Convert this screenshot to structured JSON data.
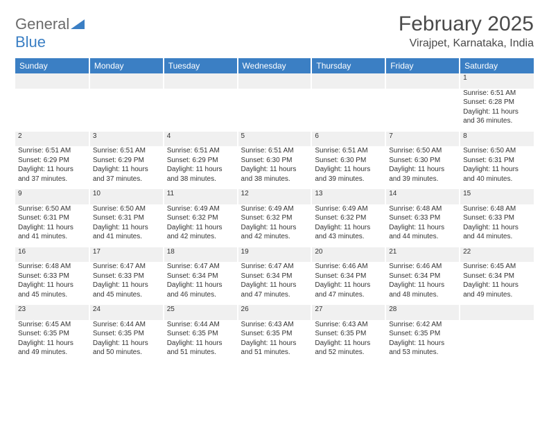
{
  "logo": {
    "text1": "General",
    "text2": "Blue"
  },
  "header": {
    "title": "February 2025",
    "location": "Virajpet, Karnataka, India"
  },
  "colors": {
    "header_bg": "#3b7fc4",
    "header_text": "#ffffff",
    "daynum_bg": "#f0f0f0",
    "text": "#333333",
    "logo_gray": "#6b6b6b",
    "logo_blue": "#3b7fc4"
  },
  "weekdays": [
    "Sunday",
    "Monday",
    "Tuesday",
    "Wednesday",
    "Thursday",
    "Friday",
    "Saturday"
  ],
  "weeks": [
    {
      "nums": [
        "",
        "",
        "",
        "",
        "",
        "",
        "1"
      ],
      "cells": [
        null,
        null,
        null,
        null,
        null,
        null,
        {
          "sunrise": "Sunrise: 6:51 AM",
          "sunset": "Sunset: 6:28 PM",
          "day1": "Daylight: 11 hours",
          "day2": "and 36 minutes."
        }
      ]
    },
    {
      "nums": [
        "2",
        "3",
        "4",
        "5",
        "6",
        "7",
        "8"
      ],
      "cells": [
        {
          "sunrise": "Sunrise: 6:51 AM",
          "sunset": "Sunset: 6:29 PM",
          "day1": "Daylight: 11 hours",
          "day2": "and 37 minutes."
        },
        {
          "sunrise": "Sunrise: 6:51 AM",
          "sunset": "Sunset: 6:29 PM",
          "day1": "Daylight: 11 hours",
          "day2": "and 37 minutes."
        },
        {
          "sunrise": "Sunrise: 6:51 AM",
          "sunset": "Sunset: 6:29 PM",
          "day1": "Daylight: 11 hours",
          "day2": "and 38 minutes."
        },
        {
          "sunrise": "Sunrise: 6:51 AM",
          "sunset": "Sunset: 6:30 PM",
          "day1": "Daylight: 11 hours",
          "day2": "and 38 minutes."
        },
        {
          "sunrise": "Sunrise: 6:51 AM",
          "sunset": "Sunset: 6:30 PM",
          "day1": "Daylight: 11 hours",
          "day2": "and 39 minutes."
        },
        {
          "sunrise": "Sunrise: 6:50 AM",
          "sunset": "Sunset: 6:30 PM",
          "day1": "Daylight: 11 hours",
          "day2": "and 39 minutes."
        },
        {
          "sunrise": "Sunrise: 6:50 AM",
          "sunset": "Sunset: 6:31 PM",
          "day1": "Daylight: 11 hours",
          "day2": "and 40 minutes."
        }
      ]
    },
    {
      "nums": [
        "9",
        "10",
        "11",
        "12",
        "13",
        "14",
        "15"
      ],
      "cells": [
        {
          "sunrise": "Sunrise: 6:50 AM",
          "sunset": "Sunset: 6:31 PM",
          "day1": "Daylight: 11 hours",
          "day2": "and 41 minutes."
        },
        {
          "sunrise": "Sunrise: 6:50 AM",
          "sunset": "Sunset: 6:31 PM",
          "day1": "Daylight: 11 hours",
          "day2": "and 41 minutes."
        },
        {
          "sunrise": "Sunrise: 6:49 AM",
          "sunset": "Sunset: 6:32 PM",
          "day1": "Daylight: 11 hours",
          "day2": "and 42 minutes."
        },
        {
          "sunrise": "Sunrise: 6:49 AM",
          "sunset": "Sunset: 6:32 PM",
          "day1": "Daylight: 11 hours",
          "day2": "and 42 minutes."
        },
        {
          "sunrise": "Sunrise: 6:49 AM",
          "sunset": "Sunset: 6:32 PM",
          "day1": "Daylight: 11 hours",
          "day2": "and 43 minutes."
        },
        {
          "sunrise": "Sunrise: 6:48 AM",
          "sunset": "Sunset: 6:33 PM",
          "day1": "Daylight: 11 hours",
          "day2": "and 44 minutes."
        },
        {
          "sunrise": "Sunrise: 6:48 AM",
          "sunset": "Sunset: 6:33 PM",
          "day1": "Daylight: 11 hours",
          "day2": "and 44 minutes."
        }
      ]
    },
    {
      "nums": [
        "16",
        "17",
        "18",
        "19",
        "20",
        "21",
        "22"
      ],
      "cells": [
        {
          "sunrise": "Sunrise: 6:48 AM",
          "sunset": "Sunset: 6:33 PM",
          "day1": "Daylight: 11 hours",
          "day2": "and 45 minutes."
        },
        {
          "sunrise": "Sunrise: 6:47 AM",
          "sunset": "Sunset: 6:33 PM",
          "day1": "Daylight: 11 hours",
          "day2": "and 45 minutes."
        },
        {
          "sunrise": "Sunrise: 6:47 AM",
          "sunset": "Sunset: 6:34 PM",
          "day1": "Daylight: 11 hours",
          "day2": "and 46 minutes."
        },
        {
          "sunrise": "Sunrise: 6:47 AM",
          "sunset": "Sunset: 6:34 PM",
          "day1": "Daylight: 11 hours",
          "day2": "and 47 minutes."
        },
        {
          "sunrise": "Sunrise: 6:46 AM",
          "sunset": "Sunset: 6:34 PM",
          "day1": "Daylight: 11 hours",
          "day2": "and 47 minutes."
        },
        {
          "sunrise": "Sunrise: 6:46 AM",
          "sunset": "Sunset: 6:34 PM",
          "day1": "Daylight: 11 hours",
          "day2": "and 48 minutes."
        },
        {
          "sunrise": "Sunrise: 6:45 AM",
          "sunset": "Sunset: 6:34 PM",
          "day1": "Daylight: 11 hours",
          "day2": "and 49 minutes."
        }
      ]
    },
    {
      "nums": [
        "23",
        "24",
        "25",
        "26",
        "27",
        "28",
        ""
      ],
      "cells": [
        {
          "sunrise": "Sunrise: 6:45 AM",
          "sunset": "Sunset: 6:35 PM",
          "day1": "Daylight: 11 hours",
          "day2": "and 49 minutes."
        },
        {
          "sunrise": "Sunrise: 6:44 AM",
          "sunset": "Sunset: 6:35 PM",
          "day1": "Daylight: 11 hours",
          "day2": "and 50 minutes."
        },
        {
          "sunrise": "Sunrise: 6:44 AM",
          "sunset": "Sunset: 6:35 PM",
          "day1": "Daylight: 11 hours",
          "day2": "and 51 minutes."
        },
        {
          "sunrise": "Sunrise: 6:43 AM",
          "sunset": "Sunset: 6:35 PM",
          "day1": "Daylight: 11 hours",
          "day2": "and 51 minutes."
        },
        {
          "sunrise": "Sunrise: 6:43 AM",
          "sunset": "Sunset: 6:35 PM",
          "day1": "Daylight: 11 hours",
          "day2": "and 52 minutes."
        },
        {
          "sunrise": "Sunrise: 6:42 AM",
          "sunset": "Sunset: 6:35 PM",
          "day1": "Daylight: 11 hours",
          "day2": "and 53 minutes."
        },
        null
      ]
    }
  ]
}
